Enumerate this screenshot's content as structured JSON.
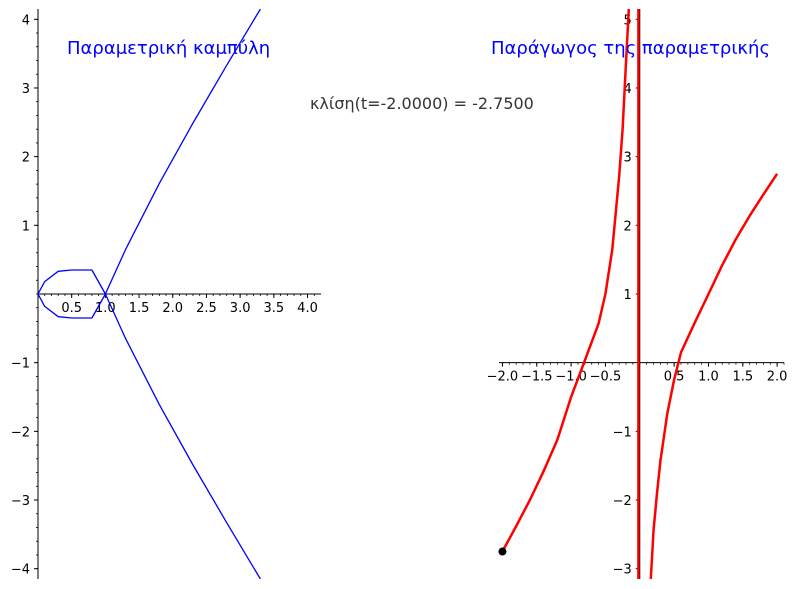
{
  "annotation": "κλίση(t=-2.0000) = -2.7500",
  "chart_data": [
    {
      "type": "line",
      "title": "Παραμετρική καμπύλη",
      "xlabel": "",
      "ylabel": "",
      "xlim": [
        0,
        4.05
      ],
      "ylim": [
        -4.15,
        4.15
      ],
      "grid": false,
      "x_ticks": [
        0.5,
        1.0,
        1.5,
        2.0,
        2.5,
        3.0,
        3.5,
        4.0
      ],
      "x_tick_labels": [
        "0.5",
        "1.0",
        "1.5",
        "2.0",
        "2.5",
        "3.0",
        "3.5",
        "4.0"
      ],
      "y_ticks": [
        -4,
        -3,
        -2,
        -1,
        1,
        2,
        3,
        4
      ],
      "y_tick_labels": [
        "−4",
        "−3",
        "−2",
        "−1",
        "1",
        "2",
        "3",
        "4"
      ],
      "series": [
        {
          "color": "#0000ff",
          "points": [
            [
              3.3,
              4.15
            ],
            [
              2.8,
              3.33
            ],
            [
              2.3,
              2.49
            ],
            [
              1.8,
              1.61
            ],
            [
              1.3,
              0.65
            ],
            [
              1.0,
              0.0
            ],
            [
              0.8,
              -0.35
            ],
            [
              0.5,
              -0.35
            ],
            [
              0.3,
              -0.33
            ],
            [
              0.1,
              -0.18
            ],
            [
              0.0,
              0.0
            ],
            [
              0.1,
              0.18
            ],
            [
              0.3,
              0.33
            ],
            [
              0.5,
              0.35
            ],
            [
              0.8,
              0.35
            ],
            [
              1.0,
              0.0
            ],
            [
              1.3,
              -0.65
            ],
            [
              1.8,
              -1.61
            ],
            [
              2.3,
              -2.49
            ],
            [
              2.8,
              -3.33
            ],
            [
              3.3,
              -4.15
            ]
          ]
        }
      ]
    },
    {
      "type": "line",
      "title": "Παράγωγος της παραμετρικής",
      "xlabel": "",
      "ylabel": "",
      "xlim": [
        -2.05,
        2.05
      ],
      "ylim": [
        -3.15,
        5.15
      ],
      "grid": false,
      "x_ticks": [
        -2.0,
        -1.5,
        -1.0,
        -0.5,
        0.5,
        1.0,
        1.5,
        2.0
      ],
      "x_tick_labels": [
        "−2.0",
        "−1.5",
        "−1.0",
        "−0.5",
        "0.5",
        "1.0",
        "1.5",
        "2.0"
      ],
      "y_ticks": [
        -3,
        -2,
        -1,
        1,
        2,
        3,
        4,
        5
      ],
      "y_tick_labels": [
        "−3",
        "−2",
        "−1",
        "1",
        "2",
        "3",
        "4",
        "5"
      ],
      "series": [
        {
          "color": "#ff0000",
          "points": [
            [
              -2.0,
              -2.75
            ],
            [
              -1.8,
              -2.38
            ],
            [
              -1.6,
              -2.0
            ],
            [
              -1.4,
              -1.58
            ],
            [
              -1.2,
              -1.12
            ],
            [
              -1.0,
              -0.5
            ],
            [
              -0.8,
              0.03
            ],
            [
              -0.6,
              0.57
            ],
            [
              -0.5,
              1.0
            ],
            [
              -0.4,
              1.65
            ],
            [
              -0.3,
              2.72
            ],
            [
              -0.25,
              3.4
            ],
            [
              -0.2,
              4.37
            ],
            [
              -0.16,
              5.15
            ]
          ]
        },
        {
          "color": "#ff0000",
          "points": [
            [
              -0.02,
              5.15
            ],
            [
              -0.02,
              -3.15
            ]
          ]
        },
        {
          "color": "#ff0000",
          "points": [
            [
              0.16,
              -3.15
            ],
            [
              0.2,
              -2.45
            ],
            [
              0.25,
              -1.9
            ],
            [
              0.3,
              -1.43
            ],
            [
              0.4,
              -0.74
            ],
            [
              0.5,
              -0.25
            ],
            [
              0.6,
              0.15
            ],
            [
              0.8,
              0.58
            ],
            [
              1.0,
              1.0
            ],
            [
              1.2,
              1.42
            ],
            [
              1.4,
              1.8
            ],
            [
              1.6,
              2.14
            ],
            [
              1.8,
              2.45
            ],
            [
              2.0,
              2.75
            ]
          ]
        }
      ],
      "marker": {
        "x": -2.0,
        "y": -2.75,
        "color": "#000000"
      }
    }
  ]
}
